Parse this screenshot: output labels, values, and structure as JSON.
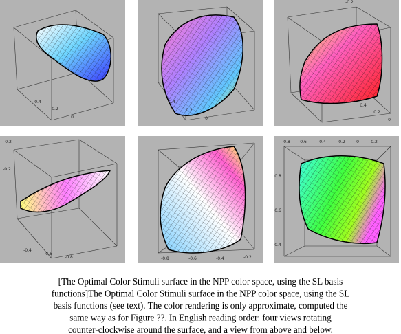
{
  "panels": [
    {
      "ticks": [
        "0.4",
        "0.2",
        "0"
      ]
    },
    {
      "ticks": [
        "0.4",
        "0.2",
        "0"
      ]
    },
    {
      "ticks": [
        "-0.2",
        "0.4",
        "0.2",
        "0"
      ]
    },
    {
      "ticks": [
        "0.2",
        "-0.2",
        "-0.4",
        "-0.6",
        "-0.8"
      ]
    },
    {
      "ticks": [
        "-0.8",
        "-0.6",
        "-0.4",
        "-0.2"
      ]
    },
    {
      "ticks": [
        "-0.8",
        "-0.6",
        "-0.4",
        "-0.2",
        "0",
        "0.2",
        "0.8",
        "0.6",
        "0.4"
      ]
    }
  ],
  "caption": [
    "[The Optimal Color Stimuli surface in the NPP color space, using the SL basis",
    "functions]The Optimal Color Stimuli surface in the NPP color space, using the SL",
    "basis functions (see text). The color rendering is only approximate, computed the",
    "same way as for Figure ??. In English reading order: four views rotating",
    "counter-clockwise around the surface, and a view from above and below."
  ]
}
